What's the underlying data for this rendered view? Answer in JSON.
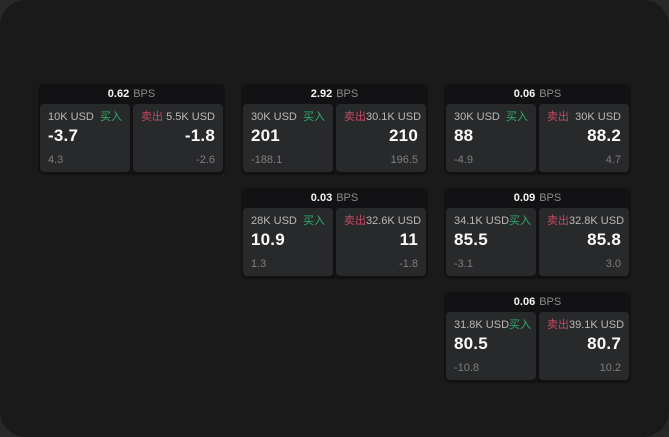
{
  "labels": {
    "bps": "BPS",
    "buy": "买入",
    "sell": "卖出"
  },
  "colors": {
    "window_bg": "#1a1a1a",
    "card_bg": "#121214",
    "panel_bg": "#28292b",
    "buy_green": "#2fae6b",
    "sell_red": "#c44a64",
    "primary_text": "#fafafa",
    "secondary_text": "#b8b8b8",
    "muted_text": "#7e7e7e"
  },
  "cards": [
    {
      "bps": "0.62",
      "buy": {
        "amount": "10K USD",
        "price": "-3.7",
        "delta": "4.3"
      },
      "sell": {
        "amount": "5.5K USD",
        "price": "-1.8",
        "delta": "-2.6"
      }
    },
    {
      "bps": "2.92",
      "buy": {
        "amount": "30K USD",
        "price": "201",
        "delta": "-188.1"
      },
      "sell": {
        "amount": "30.1K USD",
        "price": "210",
        "delta": "196.5"
      }
    },
    {
      "bps": "0.03",
      "buy": {
        "amount": "28K USD",
        "price": "10.9",
        "delta": "1.3"
      },
      "sell": {
        "amount": "32.6K USD",
        "price": "11",
        "delta": "-1.8"
      }
    },
    {
      "bps": "0.06",
      "buy": {
        "amount": "30K USD",
        "price": "88",
        "delta": "-4.9"
      },
      "sell": {
        "amount": "30K USD",
        "price": "88.2",
        "delta": "4.7"
      }
    },
    {
      "bps": "0.09",
      "buy": {
        "amount": "34.1K USD",
        "price": "85.5",
        "delta": "-3.1"
      },
      "sell": {
        "amount": "32.8K USD",
        "price": "85.8",
        "delta": "3.0"
      }
    },
    {
      "bps": "0.06",
      "buy": {
        "amount": "31.8K USD",
        "price": "80.5",
        "delta": "-10.8"
      },
      "sell": {
        "amount": "39.1K USD",
        "price": "80.7",
        "delta": "10.2"
      }
    }
  ]
}
